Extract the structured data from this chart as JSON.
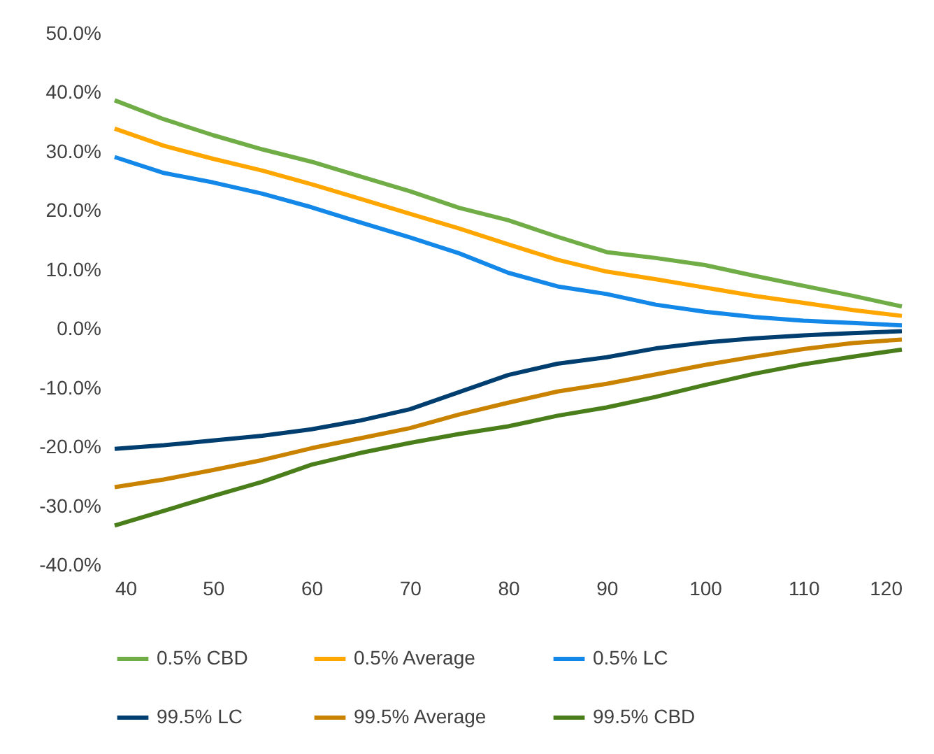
{
  "chart_data": {
    "type": "line",
    "x": [
      40,
      45,
      50,
      55,
      60,
      65,
      70,
      75,
      80,
      85,
      90,
      95,
      100,
      105,
      110,
      115,
      120
    ],
    "series": [
      {
        "name": "0.5% CBD",
        "color": "#70ad47",
        "values": [
          38.7,
          35.5,
          32.8,
          30.4,
          28.3,
          25.8,
          23.3,
          20.5,
          18.4,
          15.6,
          13.0,
          12.0,
          10.8,
          9.0,
          7.3,
          5.6,
          3.8
        ]
      },
      {
        "name": "0.5% Average",
        "color": "#ffa600",
        "values": [
          33.9,
          31.0,
          28.8,
          26.8,
          24.5,
          22.0,
          19.5,
          17.0,
          14.3,
          11.7,
          9.7,
          8.4,
          7.0,
          5.6,
          4.4,
          3.2,
          2.2
        ]
      },
      {
        "name": "0.5% LC",
        "color": "#1388e8",
        "values": [
          29.1,
          26.4,
          24.8,
          22.9,
          20.6,
          18.0,
          15.5,
          12.8,
          9.5,
          7.2,
          5.9,
          4.1,
          2.9,
          2.0,
          1.4,
          1.0,
          0.6
        ]
      },
      {
        "name": "99.5% LC",
        "color": "#003e70",
        "values": [
          -20.3,
          -19.7,
          -18.9,
          -18.1,
          -17.0,
          -15.5,
          -13.6,
          -10.7,
          -7.8,
          -5.9,
          -4.8,
          -3.3,
          -2.3,
          -1.6,
          -1.1,
          -0.7,
          -0.4
        ]
      },
      {
        "name": "99.5% Average",
        "color": "#c98300",
        "values": [
          -26.8,
          -25.5,
          -23.9,
          -22.2,
          -20.2,
          -18.5,
          -16.8,
          -14.5,
          -12.5,
          -10.6,
          -9.3,
          -7.7,
          -6.1,
          -4.7,
          -3.4,
          -2.4,
          -1.8
        ]
      },
      {
        "name": "99.5% CBD",
        "color": "#4a7e1b",
        "values": [
          -33.3,
          -30.8,
          -28.3,
          -25.9,
          -23.0,
          -21.0,
          -19.3,
          -17.8,
          -16.5,
          -14.7,
          -13.3,
          -11.5,
          -9.5,
          -7.6,
          -6.0,
          -4.7,
          -3.5
        ]
      }
    ],
    "xlim": [
      40,
      120
    ],
    "xticks": [
      40,
      50,
      60,
      70,
      80,
      90,
      100,
      110,
      120
    ],
    "ylim": [
      -40,
      50
    ],
    "yticks": [
      {
        "value": 50,
        "label": "50.0%"
      },
      {
        "value": 40,
        "label": "40.0%"
      },
      {
        "value": 30,
        "label": "30.0%"
      },
      {
        "value": 20,
        "label": "20.0%"
      },
      {
        "value": 10,
        "label": "10.0%"
      },
      {
        "value": 0,
        "label": "0.0%"
      },
      {
        "value": -10,
        "label": "-10.0%"
      },
      {
        "value": -20,
        "label": "-20.0%"
      },
      {
        "value": -30,
        "label": "-30.0%"
      },
      {
        "value": -40,
        "label": "-40.0%"
      }
    ],
    "grid": false,
    "legend": "bottom",
    "marker": "none",
    "line_style": "solid"
  }
}
